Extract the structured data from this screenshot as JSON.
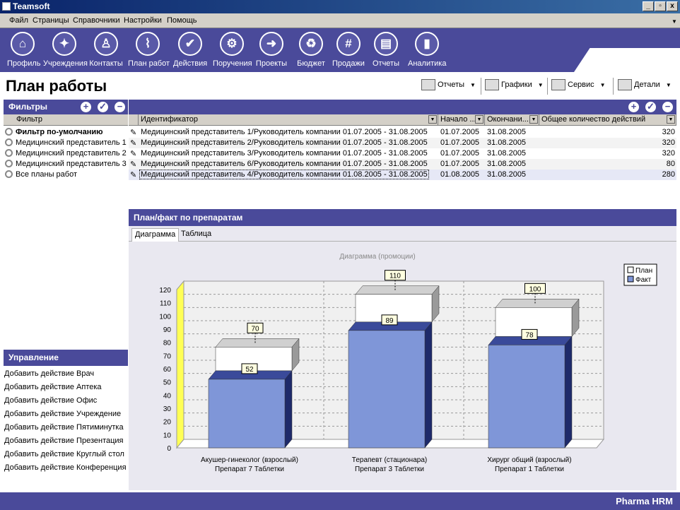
{
  "window": {
    "title": "Teamsoft",
    "min": "_",
    "max": "▫",
    "close": "x"
  },
  "menu": [
    "Файл",
    "Страницы",
    "Справочники",
    "Настройки",
    "Помощь"
  ],
  "toolbar": [
    {
      "label": "Профиль",
      "icon": "home-icon",
      "glyph": "⌂"
    },
    {
      "label": "Учреждения",
      "icon": "people-icon",
      "glyph": "✦"
    },
    {
      "label": "Контакты",
      "icon": "walking-person-icon",
      "glyph": "♙"
    },
    {
      "label": "План работ",
      "icon": "paperclip-icon",
      "glyph": "⌇"
    },
    {
      "label": "Действия",
      "icon": "checkmark-icon",
      "glyph": "✔"
    },
    {
      "label": "Поручения",
      "icon": "gears-icon",
      "glyph": "⚙"
    },
    {
      "label": "Проекты",
      "icon": "arrow-icon",
      "glyph": "➜"
    },
    {
      "label": "Бюджет",
      "icon": "recycle-icon",
      "glyph": "♻"
    },
    {
      "label": "Продажи",
      "icon": "hash-icon",
      "glyph": "#"
    },
    {
      "label": "Отчеты",
      "icon": "document-icon",
      "glyph": "▤"
    },
    {
      "label": "Аналитика",
      "icon": "bar-chart-icon",
      "glyph": "▮"
    }
  ],
  "page": {
    "title": "План работы"
  },
  "header_buttons": [
    {
      "label": "Отчеты",
      "icon": "printer-icon"
    },
    {
      "label": "Графики",
      "icon": "chart-icon"
    },
    {
      "label": "Сервис",
      "icon": "list-icon"
    },
    {
      "label": "Детали",
      "icon": "windows-icon"
    }
  ],
  "filters": {
    "title": "Фильтры",
    "column": "Фильтр",
    "items": [
      "Фильтр по-умолчанию",
      "Медицинский представитель 1",
      "Медицинский представитель 2",
      "Медицинский представитель 3",
      "Все планы работ"
    ]
  },
  "grid": {
    "columns": [
      "Идентификатор",
      "Начало ...",
      "Окончани...",
      "Общее количество действий"
    ],
    "rows": [
      {
        "id": "Медицинский представитель 1/Руководитель компании 01.07.2005 - 31.08.2005",
        "start": "01.07.2005",
        "end": "31.08.2005",
        "count": "320"
      },
      {
        "id": "Медицинский представитель 2/Руководитель компании 01.07.2005 - 31.08.2005",
        "start": "01.07.2005",
        "end": "31.08.2005",
        "count": "320"
      },
      {
        "id": "Медицинский представитель 3/Руководитель компании 01.07.2005 - 31.08.2005",
        "start": "01.07.2005",
        "end": "31.08.2005",
        "count": "320"
      },
      {
        "id": "Медицинский представитель 6/Руководитель компании 01.07.2005 - 31.08.2005",
        "start": "01.07.2005",
        "end": "31.08.2005",
        "count": "80"
      },
      {
        "id": "Медицинский представитель 4/Руководитель компании 01.08.2005 - 31.08.2005",
        "start": "01.08.2005",
        "end": "31.08.2005",
        "count": "280"
      }
    ]
  },
  "management": {
    "title": "Управление",
    "items": [
      "Добавить действие Врач",
      "Добавить действие Аптека",
      "Добавить действие Офис",
      "Добавить действие Учреждение",
      "Добавить действие Пятиминутка",
      "Добавить действие Презентация",
      "Добавить действие Круглый стол",
      "Добавить действие Конференция"
    ]
  },
  "chart_panel": {
    "title": "План/факт по препаратам",
    "tabs": [
      "Диаграмма",
      "Таблица"
    ]
  },
  "chart_data": {
    "type": "bar",
    "title": "Диаграмма (промоции)",
    "categories": [
      [
        "Акушер-гинеколог (взрослый)",
        "Препарат 7 Таблетки"
      ],
      [
        "Терапевт (стационара)",
        "Препарат 3 Таблетки"
      ],
      [
        "Хирург общий (взрослый)",
        "Препарат 1 Таблетки"
      ]
    ],
    "series": [
      {
        "name": "План",
        "values": [
          70,
          110,
          100
        ],
        "color": "#ffffff"
      },
      {
        "name": "Факт",
        "values": [
          52,
          89,
          78
        ],
        "color": "#7f96d8"
      }
    ],
    "ylim": [
      0,
      120
    ],
    "yticks": [
      0,
      10,
      20,
      30,
      40,
      50,
      60,
      70,
      80,
      90,
      100,
      110,
      120
    ],
    "grid": true,
    "legend": "top-right"
  },
  "footer": {
    "brand": "Pharma HRM"
  }
}
